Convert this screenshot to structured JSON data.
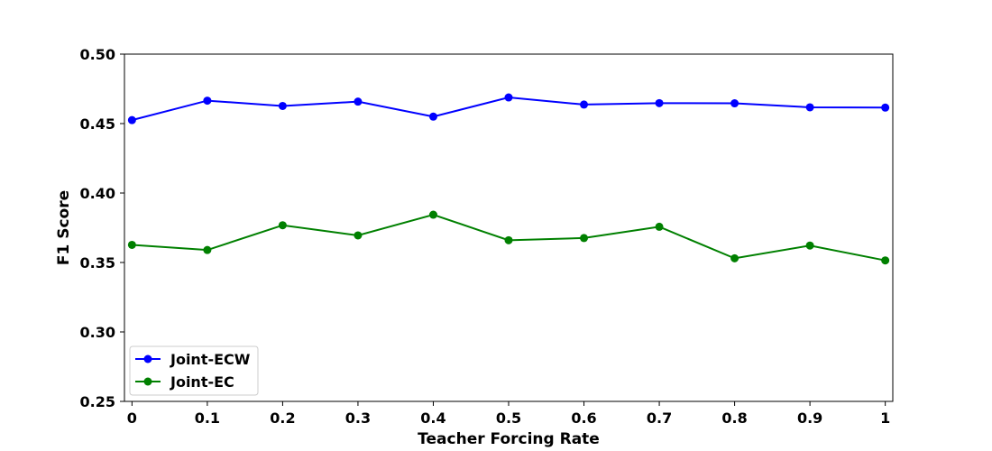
{
  "chart_data": {
    "type": "line",
    "title": "",
    "xlabel": "Teacher Forcing Rate",
    "ylabel": "F1 Score",
    "x": [
      0,
      0.1,
      0.2,
      0.3,
      0.4,
      0.5,
      0.6,
      0.7,
      0.8,
      0.9,
      1
    ],
    "x_tick_labels": [
      "0",
      "0.1",
      "0.2",
      "0.3",
      "0.4",
      "0.5",
      "0.6",
      "0.7",
      "0.8",
      "0.9",
      "1"
    ],
    "y_ticks": [
      0.25,
      0.3,
      0.35,
      0.4,
      0.45,
      0.5
    ],
    "y_tick_labels": [
      "0.25",
      "0.30",
      "0.35",
      "0.40",
      "0.45",
      "0.50"
    ],
    "xlim": [
      -0.01,
      1.01
    ],
    "ylim": [
      0.25,
      0.5
    ],
    "grid": false,
    "legend_position": "lower-left",
    "series": [
      {
        "name": "Joint-ECW",
        "color": "#0000ff",
        "marker": "circle",
        "values": [
          0.4525,
          0.4665,
          0.4627,
          0.4658,
          0.455,
          0.4688,
          0.4637,
          0.4647,
          0.4646,
          0.4617,
          0.4615
        ]
      },
      {
        "name": "Joint-EC",
        "color": "#008000",
        "marker": "circle",
        "values": [
          0.3627,
          0.359,
          0.3768,
          0.3695,
          0.3844,
          0.366,
          0.3676,
          0.3757,
          0.353,
          0.3622,
          0.3515
        ]
      }
    ]
  }
}
